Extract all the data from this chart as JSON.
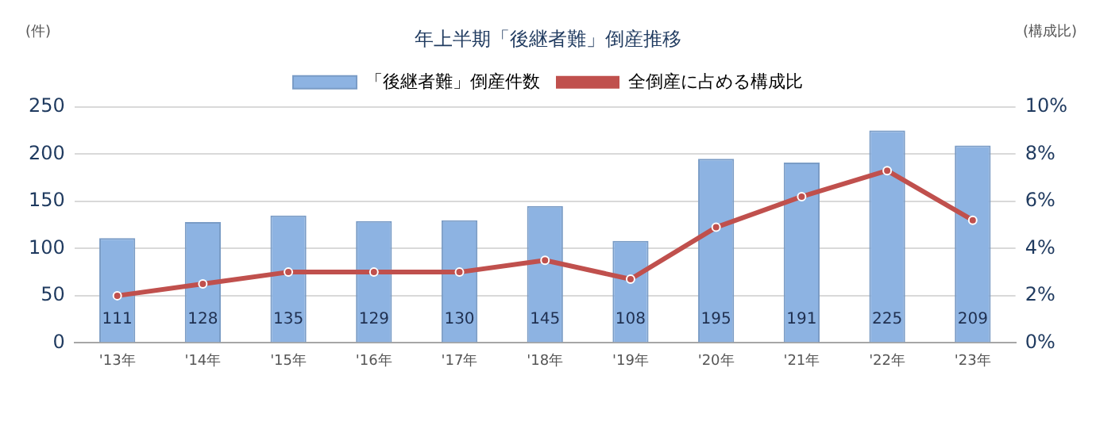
{
  "chart_data": {
    "type": "bar",
    "title": "年上半期「後継者難」倒産推移",
    "ylabel": "(件)",
    "y2label": "(構成比)",
    "categories": [
      "'13年",
      "'14年",
      "'15年",
      "'16年",
      "'17年",
      "'18年",
      "'19年",
      "'20年",
      "'21年",
      "'22年",
      "'23年"
    ],
    "series": [
      {
        "name": "「後継者難」倒産件数",
        "color": "#8db3e2",
        "values": [
          111,
          128,
          135,
          129,
          130,
          145,
          108,
          195,
          191,
          225,
          209
        ],
        "value_labels": [
          "111",
          "128",
          "135",
          "129",
          "130",
          "145",
          "108",
          "195",
          "191",
          "225",
          "209"
        ]
      },
      {
        "name": "全倒産に占める構成比",
        "type": "line",
        "axis": "y2",
        "color": "#c0504d",
        "marker": "circle",
        "values": [
          2.0,
          2.5,
          3.0,
          3.0,
          3.0,
          3.5,
          2.7,
          4.9,
          6.2,
          7.3,
          5.2
        ]
      }
    ],
    "ylim": [
      0,
      250
    ],
    "yticks": [
      0,
      50,
      100,
      150,
      200,
      250
    ],
    "y2lim": [
      0,
      10
    ],
    "y2ticks": [
      {
        "value": 0,
        "label": "0%"
      },
      {
        "value": 2,
        "label": "2%"
      },
      {
        "value": 4,
        "label": "4%"
      },
      {
        "value": 6,
        "label": "6%"
      },
      {
        "value": 8,
        "label": "8%"
      },
      {
        "value": 10,
        "label": "10%"
      }
    ],
    "grid": "y",
    "legend": "top"
  }
}
